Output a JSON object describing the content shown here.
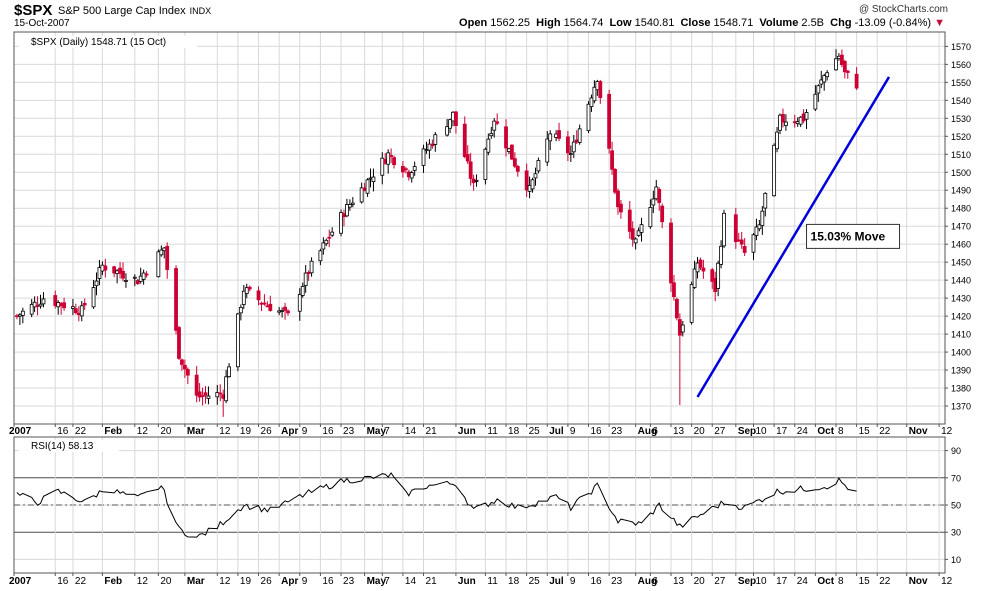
{
  "header": {
    "ticker": "$SPX",
    "name": "S&P 500 Large Cap Index",
    "exchange": "INDX",
    "date": "15-Oct-2007",
    "watermark": "@ StockCharts.com",
    "open_label": "Open",
    "open": "1562.25",
    "high_label": "High",
    "high": "1564.74",
    "low_label": "Low",
    "low": "1540.81",
    "close_label": "Close",
    "close": "1548.71",
    "volume_label": "Volume",
    "volume": "2.5B",
    "chg_label": "Chg",
    "chg": "-13.09 (-0.84%)"
  },
  "colors": {
    "up": "#000000",
    "down": "#cc0033",
    "trendline": "#0000dd",
    "grid": "#d9d9d9",
    "rsi_line": "#000000"
  },
  "chart_data": [
    {
      "type": "candlestick",
      "title": "$SPX (Daily) 1548.71 (15 Oct)",
      "ylim": [
        1360,
        1578
      ],
      "y_ticks": [
        1370,
        1380,
        1390,
        1400,
        1410,
        1420,
        1430,
        1440,
        1450,
        1460,
        1470,
        1480,
        1490,
        1500,
        1510,
        1520,
        1530,
        1540,
        1550,
        1560,
        1570
      ],
      "x_tick_labels": [
        "2007",
        "16",
        "22",
        "Feb",
        "12",
        "20",
        "Mar",
        "12",
        "19",
        "26",
        "Apr",
        "9",
        "16",
        "23",
        "May",
        "7",
        "14",
        "21",
        "Jun",
        "11",
        "18",
        "25",
        "Jul",
        "9",
        "16",
        "23",
        "Aug",
        "6",
        "13",
        "20",
        "27",
        "Sep",
        "10",
        "17",
        "24",
        "Oct",
        "8",
        "15",
        "22",
        "Nov",
        "12"
      ],
      "grid": true,
      "anchors": [
        [
          "2007-01-03",
          1420
        ],
        [
          "2007-01-12",
          1430
        ],
        [
          "2007-01-25",
          1423
        ],
        [
          "2007-02-01",
          1448
        ],
        [
          "2007-02-13",
          1440
        ],
        [
          "2007-02-22",
          1458
        ],
        [
          "2007-02-27",
          1399
        ],
        [
          "2007-03-05",
          1375
        ],
        [
          "2007-03-14",
          1377
        ],
        [
          "2007-03-21",
          1435
        ],
        [
          "2007-03-27",
          1428
        ],
        [
          "2007-04-05",
          1420
        ],
        [
          "2007-04-12",
          1445
        ],
        [
          "2007-04-24",
          1478
        ],
        [
          "2007-05-09",
          1510
        ],
        [
          "2007-05-16",
          1500
        ],
        [
          "2007-05-31",
          1532
        ],
        [
          "2007-06-07",
          1492
        ],
        [
          "2007-06-14",
          1530
        ],
        [
          "2007-06-21",
          1505
        ],
        [
          "2007-06-26",
          1490
        ],
        [
          "2007-07-03",
          1522
        ],
        [
          "2007-07-10",
          1510
        ],
        [
          "2007-07-19",
          1553
        ],
        [
          "2007-07-26",
          1480
        ],
        [
          "2007-08-01",
          1460
        ],
        [
          "2007-08-08",
          1492
        ],
        [
          "2007-08-16",
          1410
        ],
        [
          "2007-08-22",
          1450
        ],
        [
          "2007-08-28",
          1435
        ],
        [
          "2007-08-31",
          1475
        ],
        [
          "2007-09-07",
          1455
        ],
        [
          "2007-09-12",
          1470
        ],
        [
          "2007-09-19",
          1529
        ],
        [
          "2007-09-27",
          1530
        ],
        [
          "2007-10-05",
          1557
        ],
        [
          "2007-10-09",
          1565
        ],
        [
          "2007-10-11",
          1555
        ],
        [
          "2007-10-15",
          1549
        ]
      ],
      "notable_lows": [
        [
          "2007-03-14",
          1363.98
        ],
        [
          "2007-08-16",
          1370.6
        ]
      ],
      "annotation": {
        "text": "15.03% Move",
        "line_from": [
          "2007-08-22",
          1375
        ],
        "line_to": [
          "2007-10-26",
          1553
        ]
      }
    },
    {
      "type": "line",
      "title": "RSI(14) 58.13",
      "ylim": [
        0,
        100
      ],
      "y_ticks": [
        10,
        30,
        50,
        70,
        90
      ],
      "reference_lines": [
        30,
        50,
        70
      ],
      "anchors": [
        [
          "2007-01-03",
          58
        ],
        [
          "2007-01-10",
          52
        ],
        [
          "2007-01-17",
          60
        ],
        [
          "2007-01-26",
          52
        ],
        [
          "2007-02-02",
          62
        ],
        [
          "2007-02-13",
          55
        ],
        [
          "2007-02-21",
          64
        ],
        [
          "2007-02-27",
          32
        ],
        [
          "2007-03-05",
          26
        ],
        [
          "2007-03-12",
          34
        ],
        [
          "2007-03-21",
          50
        ],
        [
          "2007-03-30",
          46
        ],
        [
          "2007-04-11",
          58
        ],
        [
          "2007-04-24",
          68
        ],
        [
          "2007-05-03",
          70
        ],
        [
          "2007-05-10",
          72
        ],
        [
          "2007-05-15",
          58
        ],
        [
          "2007-05-22",
          64
        ],
        [
          "2007-06-01",
          66
        ],
        [
          "2007-06-07",
          46
        ],
        [
          "2007-06-15",
          54
        ],
        [
          "2007-06-22",
          48
        ],
        [
          "2007-06-29",
          52
        ],
        [
          "2007-07-05",
          56
        ],
        [
          "2007-07-10",
          48
        ],
        [
          "2007-07-19",
          64
        ],
        [
          "2007-07-26",
          38
        ],
        [
          "2007-08-03",
          36
        ],
        [
          "2007-08-09",
          50
        ],
        [
          "2007-08-16",
          34
        ],
        [
          "2007-08-24",
          44
        ],
        [
          "2007-08-31",
          52
        ],
        [
          "2007-09-07",
          48
        ],
        [
          "2007-09-18",
          60
        ],
        [
          "2007-09-28",
          62
        ],
        [
          "2007-10-05",
          64
        ],
        [
          "2007-10-09",
          68
        ],
        [
          "2007-10-15",
          58
        ]
      ]
    }
  ]
}
